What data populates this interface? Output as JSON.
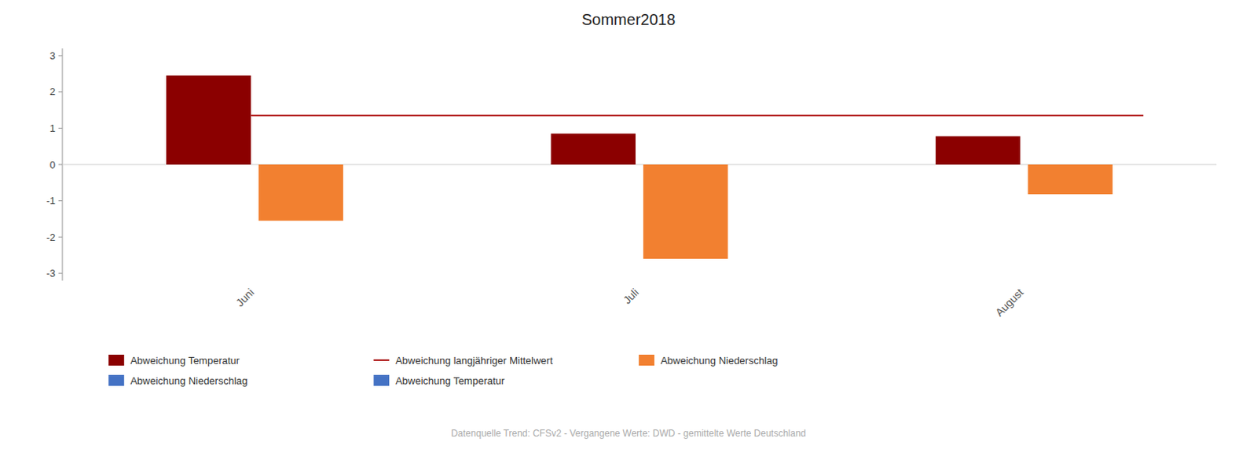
{
  "chart_data": {
    "type": "bar",
    "title": "Sommer2018",
    "subtitle": "Datenquelle Trend: CFSv2 - Vergangene Werte: DWD - gemittelte Werte Deutschland",
    "categories": [
      "Juni",
      "Juli",
      "August"
    ],
    "series": [
      {
        "color": "#8B0000",
        "values": [
          2.45,
          0.85,
          0.78
        ]
      },
      {
        "color": "#F28030",
        "values": [
          -1.55,
          -2.6,
          -0.82
        ]
      }
    ],
    "reference_line": {
      "value": 1.35,
      "color": "#AA0000"
    },
    "legend": "bottom",
    "legend_entries": [
      {
        "name": "Abweichung Temperatur",
        "color": "#8B0000",
        "marker": "square"
      },
      {
        "name": "Abweichung Niederschlag",
        "color": "#4472C4",
        "marker": "square"
      },
      {
        "name": "Abweichung langjähriger Mittelwert",
        "color": "#AA0000",
        "marker": "line"
      },
      {
        "name": "Abweichung Temperatur",
        "color": "#4472C4",
        "marker": "square"
      },
      {
        "name": "Abweichung Niederschlag",
        "color": "#F28030",
        "marker": "square"
      }
    ],
    "ylim": [
      -3.2,
      3.2
    ],
    "yticks": [
      -3,
      -2,
      -1,
      0,
      1,
      2,
      3
    ],
    "grid": false
  }
}
